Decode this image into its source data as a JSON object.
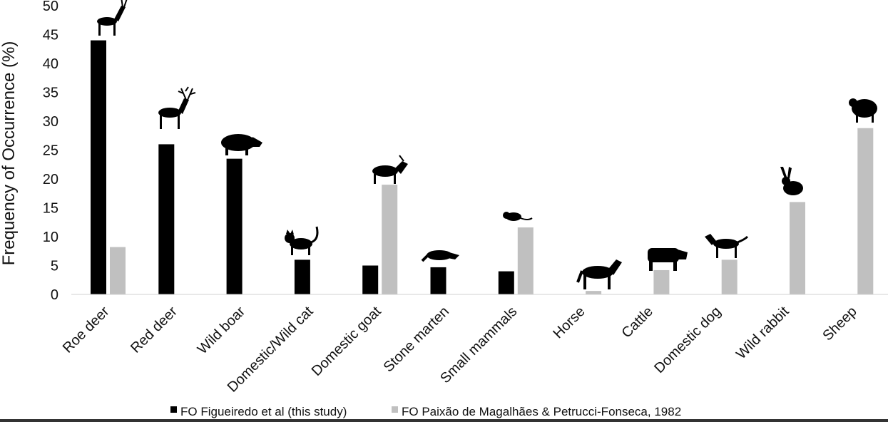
{
  "chart_data": {
    "type": "bar",
    "ylabel": "Frequency of Occurrence (%)",
    "ylim": [
      0,
      50
    ],
    "yticks": [
      0,
      5,
      10,
      15,
      20,
      25,
      30,
      35,
      40,
      45,
      50
    ],
    "grid": false,
    "legend_position": "bottom-center",
    "categories": [
      "Roe deer",
      "Red deer",
      "Wild boar",
      "Domestic/Wild cat",
      "Domestic goat",
      "Stone marten",
      "Small mammals",
      "Horse",
      "Cattle",
      "Domestic dog",
      "Wild rabbit",
      "Sheep"
    ],
    "category_icons": [
      "roe-deer-icon",
      "red-deer-icon",
      "wild-boar-icon",
      "cat-icon",
      "goat-icon",
      "stone-marten-icon",
      "small-mammal-icon",
      "horse-icon",
      "cattle-icon",
      "dog-icon",
      "rabbit-icon",
      "sheep-icon"
    ],
    "series": [
      {
        "name": "FO Figueiredo et al (this study)",
        "color": "#000000",
        "values": [
          44,
          26,
          23.5,
          6,
          5,
          4.7,
          4,
          0,
          0,
          0,
          0,
          0
        ]
      },
      {
        "name": "FO Paixão de Magalhães & Petrucci-Fonseca, 1982",
        "color": "#c0c0c0",
        "values": [
          8.2,
          0,
          0,
          0,
          19,
          0,
          11.6,
          0.6,
          4.2,
          6,
          16,
          28.8
        ]
      }
    ]
  }
}
